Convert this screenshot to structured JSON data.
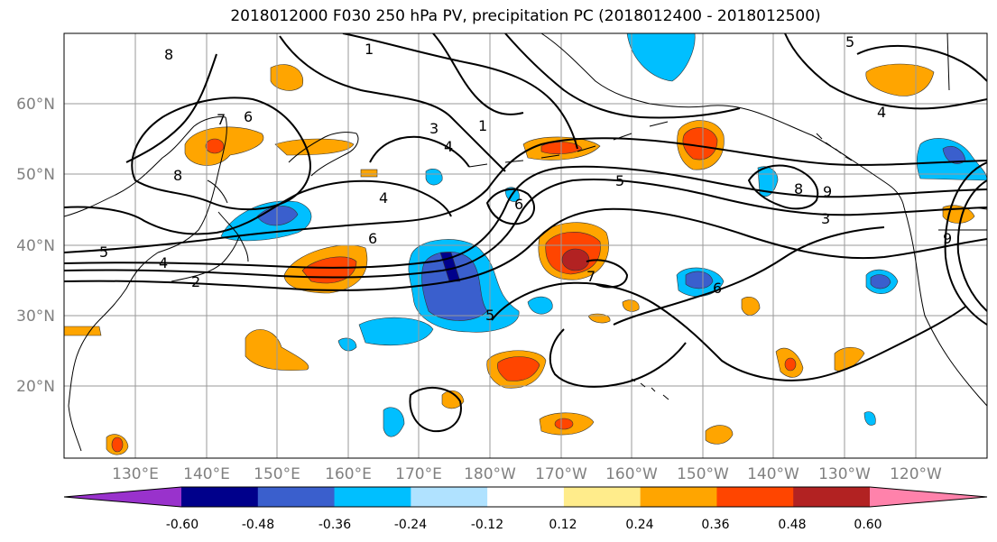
{
  "title": "2018012000 F030 250 hPa PV, precipitation PC (2018012400 - 2018012500)",
  "lat_labels": [
    "60°N",
    "50°N",
    "40°N",
    "30°N",
    "20°N"
  ],
  "lon_labels": [
    "130°E",
    "140°E",
    "150°E",
    "160°E",
    "170°E",
    "180°W",
    "170°W",
    "160°W",
    "150°W",
    "140°W",
    "130°W",
    "120°W"
  ],
  "colorbar": {
    "colors": [
      "#9932CC",
      "#00008B",
      "#3A5FCD",
      "#00BFFF",
      "#B0E2FF",
      "#FFFFFF",
      "#FFEC8B",
      "#FFA500",
      "#FF4500",
      "#B22222",
      "#FF82AB"
    ],
    "tick_labels": [
      "-0.60",
      "-0.48",
      "-0.36",
      "-0.24",
      "-0.12",
      "0.12",
      "0.24",
      "0.36",
      "0.48",
      "0.60"
    ]
  },
  "contour_labels": [
    "8",
    "1",
    "7",
    "6",
    "8",
    "3",
    "1",
    "5",
    "4",
    "6",
    "4",
    "5",
    "4",
    "2",
    "6",
    "7",
    "5",
    "8",
    "9",
    "3",
    "4",
    "5",
    "9",
    "6"
  ]
}
